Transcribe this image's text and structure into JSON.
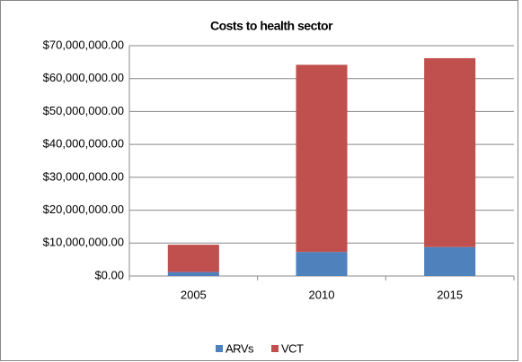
{
  "chart_data": {
    "type": "stacked_bar",
    "title": "Costs to health sector",
    "categories": [
      "2005",
      "2010",
      "2015"
    ],
    "series": [
      {
        "name": "ARVs",
        "color": "#4f81bd",
        "values": [
          1200000,
          7300000,
          8800000
        ]
      },
      {
        "name": "VCT",
        "color": "#c0504d",
        "values": [
          8300000,
          56900000,
          57400000
        ]
      }
    ],
    "ylim": [
      0,
      70000000
    ],
    "yticks": [
      {
        "value": 0,
        "label": "$0.00"
      },
      {
        "value": 10000000,
        "label": "$10,000,000.00"
      },
      {
        "value": 20000000,
        "label": "$20,000,000.00"
      },
      {
        "value": 30000000,
        "label": "$30,000,000.00"
      },
      {
        "value": 40000000,
        "label": "$40,000,000.00"
      },
      {
        "value": 50000000,
        "label": "$50,000,000.00"
      },
      {
        "value": 60000000,
        "label": "$60,000,000.00"
      },
      {
        "value": 70000000,
        "label": "$70,000,000.00"
      }
    ],
    "grid": true,
    "legend": "bottom"
  }
}
